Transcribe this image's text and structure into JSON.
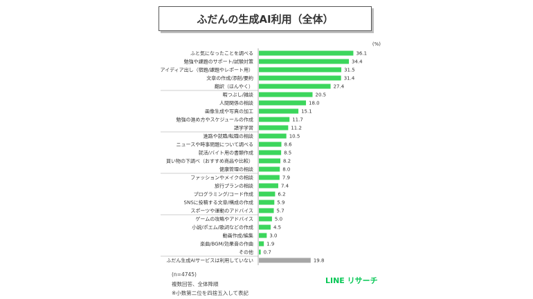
{
  "title": "ふだんの生成AI利用（全体）",
  "unit_label": "(%)",
  "footnotes": {
    "n": "(n=4745)",
    "note1": "複数回答、全体降順",
    "note2": "※小数第二位を四捨五入して表記"
  },
  "brand": "LINE リサーチ",
  "colors": {
    "bar": "#3cd65c",
    "bar_none": "#a6a6a6"
  },
  "chart_data": {
    "type": "bar",
    "orientation": "horizontal",
    "categories": [
      "ふと気になったことを調べる",
      "勉強や課題のサポート/試験対策",
      "アイディア出し（宿題/課題やレポート用）",
      "文章の作成/添削/要約",
      "翻訳（ほんやく）",
      "暇つぶし/雑談",
      "人間関係の相談",
      "画像生成や写真の加工",
      "勉強の進め方やスケジュールの作成",
      "語学学習",
      "進路や就職/転職の相談",
      "ニュースや時事問題について調べる",
      "就活/バイト用の書類作成",
      "買い物の下調べ（おすすめ商品や比較）",
      "健康管理の相談",
      "ファッションやメイクの相談",
      "旅行プランの相談",
      "プログラミング/コード作成",
      "SNSに投稿する文章/構成の作成",
      "スポーツや運動のアドバイス",
      "ゲームの攻略やアドバイス",
      "小説/ポエム/歌詞などの作成",
      "動画作成/編集",
      "楽曲/BGM/効果音の作曲",
      "その他",
      "ふだん生成AIサービスは利用していない"
    ],
    "values": [
      36.1,
      34.4,
      31.5,
      31.4,
      27.4,
      20.5,
      18.0,
      15.1,
      11.7,
      11.2,
      10.5,
      8.6,
      8.5,
      8.2,
      8.0,
      7.9,
      7.4,
      6.2,
      5.9,
      5.7,
      5.0,
      4.5,
      3.0,
      1.9,
      0.7,
      19.8
    ],
    "value_labels": [
      "36.1",
      "34.4",
      "31.5",
      "31.4",
      "27.4",
      "20.5",
      "18.0",
      "15.1",
      "11.7",
      "11.2",
      "10.5",
      "8.6",
      "8.5",
      "8.2",
      "8.0",
      "7.9",
      "7.4",
      "6.2",
      "5.9",
      "5.7",
      "5.0",
      "4.5",
      "3.0",
      "1.9",
      "0.7",
      "19.8"
    ],
    "xlabel": "",
    "ylabel": "",
    "grid": false,
    "legend": "none"
  }
}
